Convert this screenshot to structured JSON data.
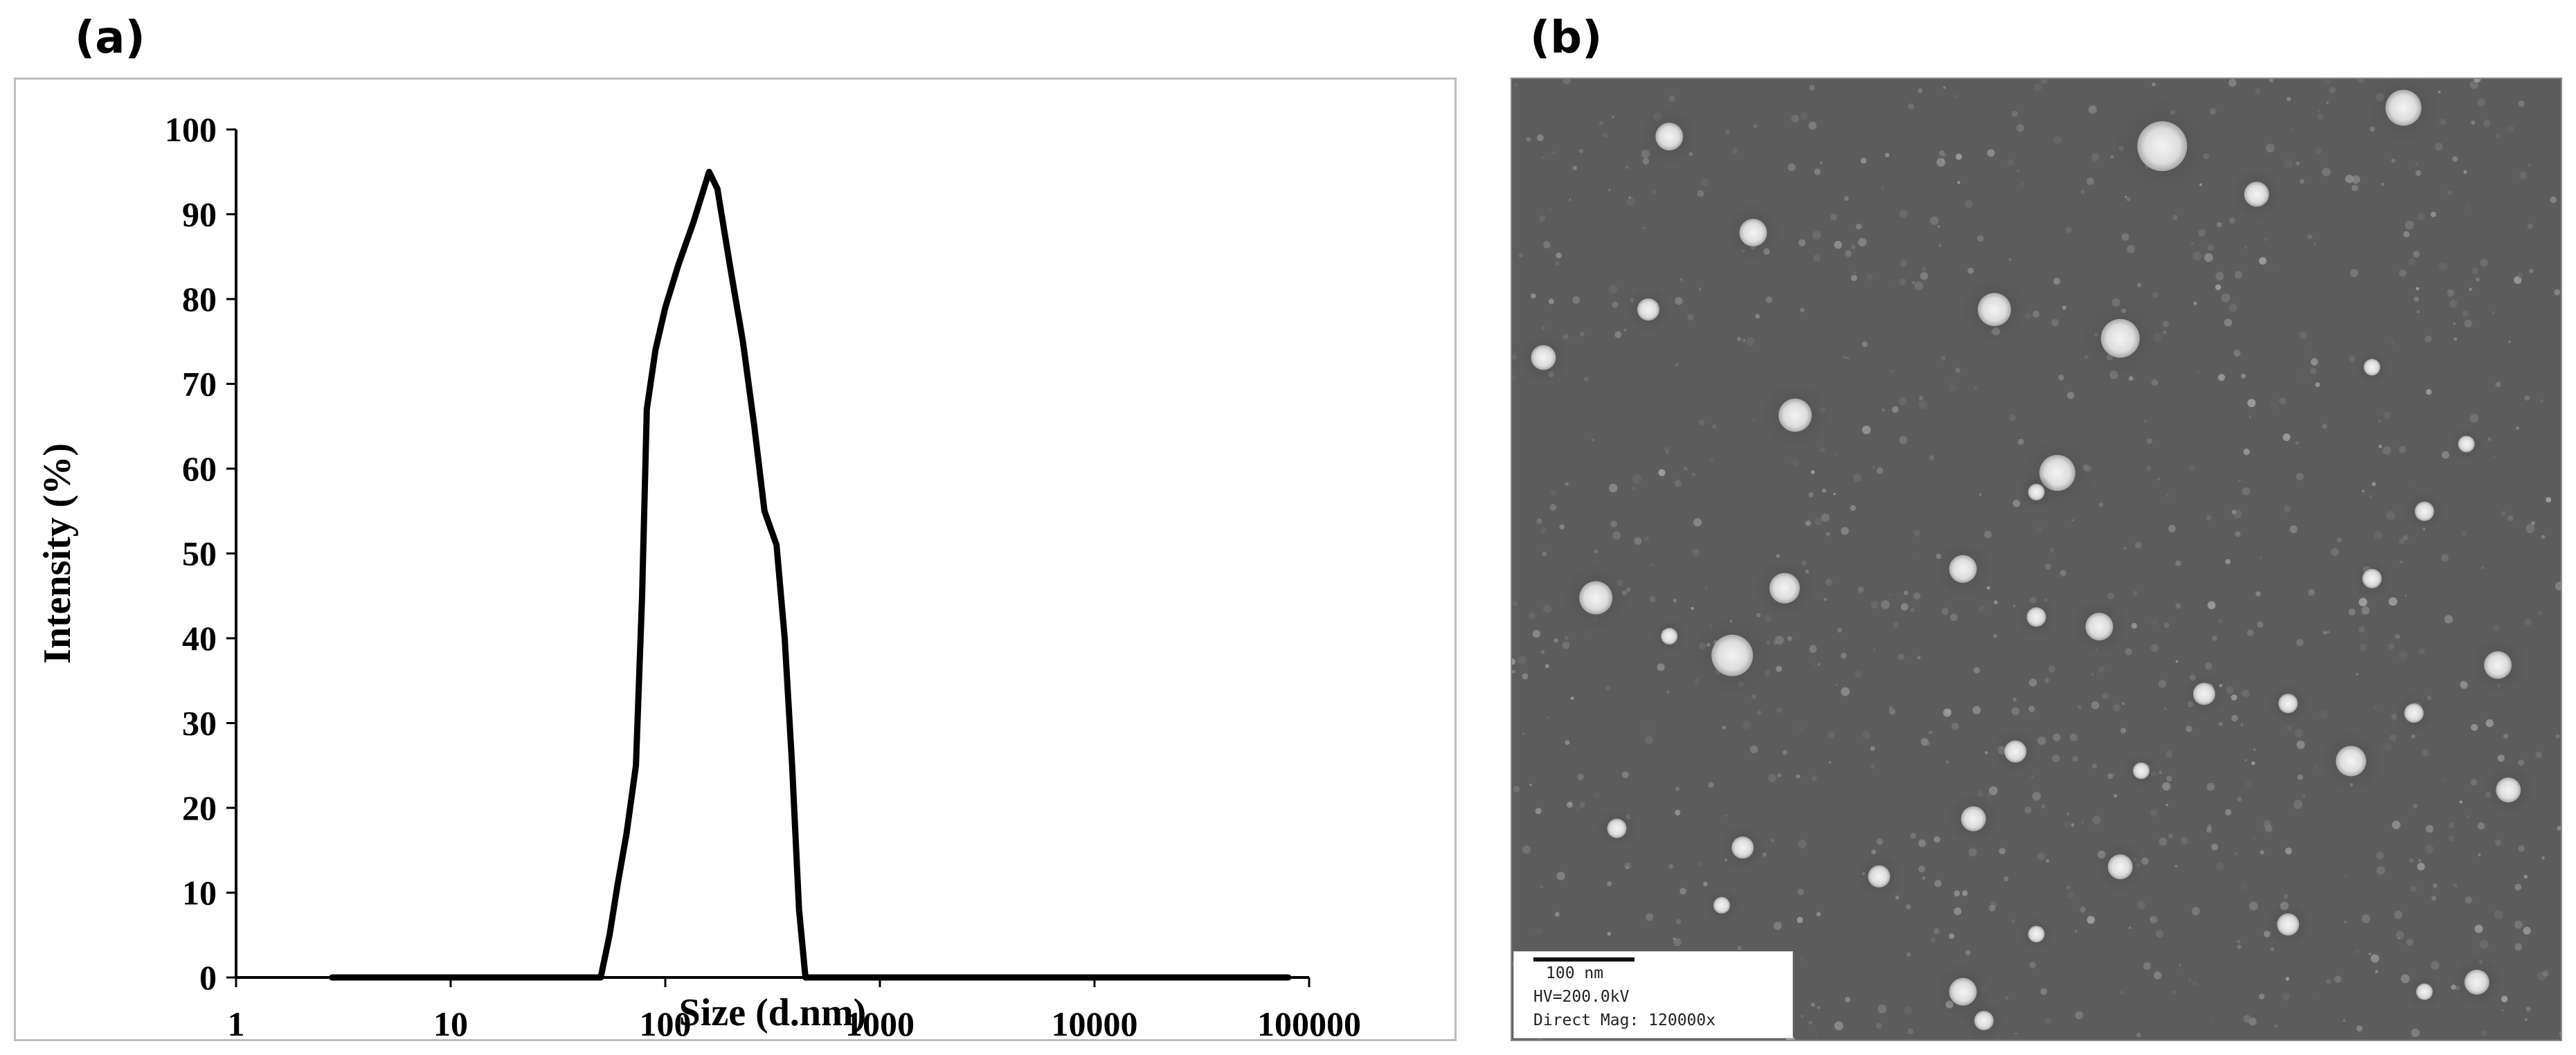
{
  "panels": {
    "a_label": "(a)",
    "b_label": "(b)"
  },
  "chart_data": {
    "type": "line",
    "title": "",
    "xlabel": "Size (d.nm)",
    "ylabel": "Intensity (%)",
    "x_scale": "log",
    "xlim": [
      1,
      100000
    ],
    "ylim": [
      0,
      100
    ],
    "x_ticks": [
      1,
      10,
      100,
      1000,
      10000,
      100000
    ],
    "x_tick_labels": [
      "1",
      "10",
      "100",
      "1000",
      "10000",
      "100000"
    ],
    "y_ticks": [
      0,
      10,
      20,
      30,
      40,
      50,
      60,
      70,
      80,
      90,
      100
    ],
    "y_tick_labels": [
      "0",
      "10",
      "20",
      "30",
      "40",
      "50",
      "60",
      "70",
      "80",
      "90",
      "100"
    ],
    "grid": false,
    "line_color": "#000000",
    "series": [
      {
        "x": [
          2.8,
          50,
          55,
          60,
          66,
          73,
          78,
          82,
          90,
          100,
          115,
          135,
          160,
          175,
          200,
          230,
          260,
          290,
          330,
          360,
          390,
          420,
          450,
          80000
        ],
        "y": [
          0,
          0,
          5,
          11,
          17,
          25,
          45,
          67,
          74,
          79,
          84,
          89,
          95,
          93,
          84,
          75,
          65,
          55,
          51,
          40,
          25,
          8,
          0,
          0
        ]
      }
    ]
  },
  "tem": {
    "scale_length": "100 nm",
    "hv": "HV=200.0kV",
    "mag": "Direct Mag: 120000x",
    "background_color": "#5d5d5d",
    "particle_color": "#e8e8e8"
  }
}
